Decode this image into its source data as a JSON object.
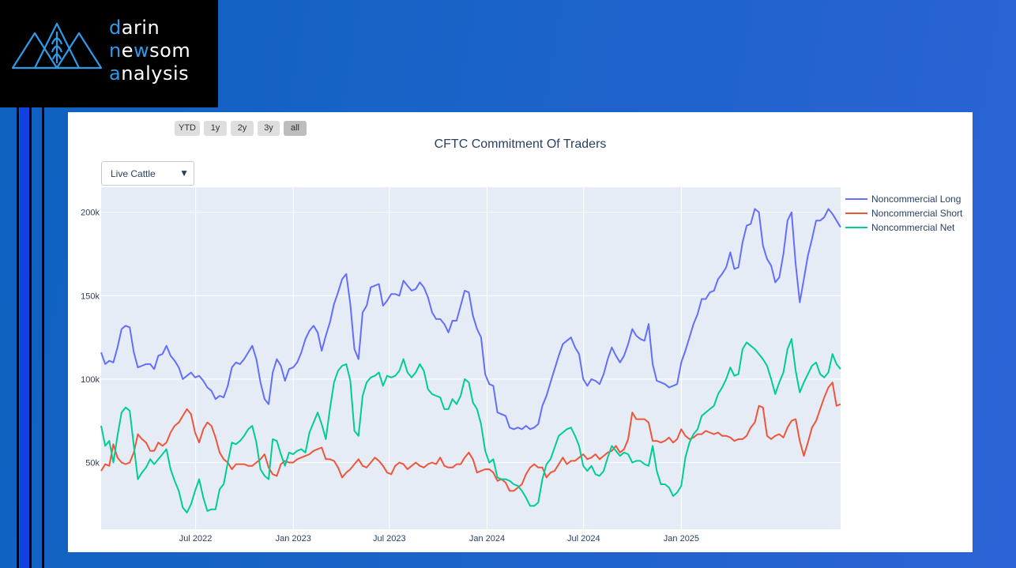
{
  "brand": {
    "line1": {
      "initial": "d",
      "rest": "arin"
    },
    "line2": {
      "initial": "n",
      "mid": "e",
      "w": "w",
      "rest": "som"
    },
    "line3": {
      "initial": "a",
      "rest": "nalysis"
    }
  },
  "range_selector": [
    {
      "label": "YTD",
      "active": false
    },
    {
      "label": "1y",
      "active": false
    },
    {
      "label": "2y",
      "active": false
    },
    {
      "label": "3y",
      "active": false
    },
    {
      "label": "all",
      "active": true
    }
  ],
  "commodity_select": {
    "value": "Live Cattle"
  },
  "chart_data": {
    "type": "line",
    "title": "CFTC Commitment Of Traders",
    "xlabel": "",
    "ylabel": "",
    "x_start": "2022-01-04",
    "x_end": "2025-10-28",
    "ylim": [
      10000,
      215000
    ],
    "y_ticks": [
      50000,
      100000,
      150000,
      200000
    ],
    "y_tick_labels": [
      "50k",
      "100k",
      "150k",
      "200k"
    ],
    "x_ticks": [
      "2022-07-01",
      "2023-01-01",
      "2023-07-01",
      "2024-01-01",
      "2024-07-01",
      "2025-01-01"
    ],
    "x_tick_labels": [
      "Jul 2022",
      "Jan 2023",
      "Jul 2023",
      "Jan 2024",
      "Jul 2024",
      "Jan 2025"
    ],
    "grid": true,
    "legend": "top-right",
    "series": [
      {
        "name": "Noncommercial Long",
        "color": "#636efa",
        "values": [
          116,
          109,
          111,
          110,
          119,
          130,
          132,
          131,
          116,
          107,
          108,
          109,
          109,
          106,
          114,
          115,
          120,
          114,
          111,
          107,
          100,
          102,
          104,
          101,
          102,
          99,
          95,
          93,
          88,
          90,
          89,
          96,
          107,
          110,
          109,
          112,
          116,
          120,
          112,
          98,
          88,
          85,
          104,
          112,
          108,
          99,
          106,
          107,
          110,
          116,
          124,
          129,
          132,
          128,
          117,
          126,
          134,
          145,
          152,
          160,
          163,
          145,
          118,
          112,
          140,
          144,
          155,
          156,
          157,
          144,
          147,
          151,
          151,
          150,
          159,
          156,
          153,
          154,
          158,
          155,
          149,
          140,
          136,
          136,
          133,
          128,
          135,
          135,
          144,
          153,
          152,
          138,
          130,
          125,
          103,
          97,
          96,
          80,
          79,
          78,
          71,
          70,
          71,
          70,
          72,
          70,
          71,
          73,
          84,
          90,
          98,
          106,
          114,
          121,
          123,
          125,
          119,
          115,
          100,
          96,
          100,
          99,
          97,
          103,
          112,
          119,
          114,
          110,
          114,
          121,
          130,
          126,
          124,
          123,
          133,
          109,
          99,
          98,
          97,
          95,
          96,
          97,
          110,
          117,
          125,
          133,
          139,
          148,
          148,
          152,
          153,
          160,
          163,
          167,
          176,
          166,
          167,
          182,
          192,
          193,
          202,
          200,
          180,
          172,
          168,
          158,
          161,
          175,
          195,
          200,
          169,
          146,
          160,
          174,
          184,
          195,
          195,
          197,
          202,
          199,
          195,
          191
        ]
      },
      {
        "name": "Noncommercial Short",
        "color": "#ef553b",
        "values": [
          45,
          49,
          48,
          61,
          53,
          50,
          49,
          50,
          56,
          67,
          64,
          62,
          57,
          57,
          62,
          60,
          62,
          68,
          72,
          74,
          78,
          82,
          79,
          68,
          62,
          70,
          74,
          72,
          65,
          56,
          52,
          50,
          46,
          49,
          49,
          49,
          48,
          48,
          50,
          52,
          55,
          47,
          43,
          42,
          49,
          51,
          50,
          50,
          52,
          53,
          54,
          55,
          57,
          58,
          59,
          52,
          52,
          51,
          47,
          41,
          44,
          46,
          49,
          52,
          48,
          47,
          50,
          53,
          51,
          48,
          44,
          43,
          48,
          50,
          49,
          46,
          48,
          50,
          48,
          47,
          49,
          50,
          49,
          53,
          48,
          47,
          47,
          49,
          49,
          53,
          56,
          52,
          44,
          45,
          46,
          46,
          44,
          39,
          40,
          38,
          33,
          33,
          35,
          37,
          43,
          47,
          49,
          47,
          47,
          41,
          44,
          45,
          49,
          53,
          49,
          51,
          51,
          53,
          55,
          52,
          53,
          55,
          52,
          54,
          56,
          57,
          60,
          56,
          58,
          64,
          80,
          76,
          76,
          76,
          74,
          63,
          63,
          62,
          63,
          65,
          62,
          64,
          70,
          66,
          64,
          65,
          67,
          67,
          69,
          68,
          67,
          68,
          66,
          66,
          65,
          63,
          64,
          64,
          66,
          71,
          74,
          84,
          83,
          66,
          64,
          66,
          67,
          65,
          71,
          75,
          76,
          63,
          54,
          62,
          71,
          75,
          82,
          89,
          95,
          98,
          84,
          85
        ]
      },
      {
        "name": "Noncommercial Net",
        "color": "#00cc96",
        "values": [
          72,
          60,
          63,
          50,
          66,
          80,
          83,
          81,
          60,
          40,
          44,
          47,
          52,
          49,
          52,
          55,
          58,
          46,
          39,
          33,
          23,
          20,
          25,
          33,
          40,
          29,
          21,
          22,
          22,
          34,
          37,
          50,
          62,
          61,
          63,
          66,
          70,
          72,
          62,
          46,
          42,
          40,
          64,
          63,
          55,
          48,
          56,
          55,
          57,
          58,
          56,
          68,
          74,
          80,
          73,
          64,
          82,
          98,
          105,
          108,
          109,
          99,
          69,
          66,
          90,
          98,
          101,
          102,
          104,
          96,
          102,
          101,
          102,
          105,
          112,
          104,
          101,
          104,
          109,
          105,
          94,
          91,
          90,
          89,
          82,
          82,
          88,
          85,
          90,
          100,
          98,
          86,
          82,
          73,
          57,
          50,
          52,
          41,
          40,
          40,
          39,
          37,
          36,
          33,
          29,
          24,
          24,
          26,
          40,
          49,
          52,
          59,
          66,
          68,
          70,
          71,
          66,
          60,
          48,
          45,
          48,
          43,
          42,
          45,
          53,
          60,
          57,
          54,
          56,
          55,
          50,
          51,
          51,
          49,
          48,
          60,
          45,
          37,
          37,
          35,
          30,
          32,
          36,
          53,
          62,
          67,
          70,
          78,
          80,
          82,
          84,
          91,
          95,
          100,
          107,
          102,
          103,
          118,
          122,
          120,
          118,
          115,
          112,
          108,
          100,
          91,
          98,
          104,
          118,
          124,
          105,
          92,
          98,
          103,
          108,
          110,
          103,
          101,
          104,
          115,
          109,
          106
        ]
      }
    ]
  }
}
